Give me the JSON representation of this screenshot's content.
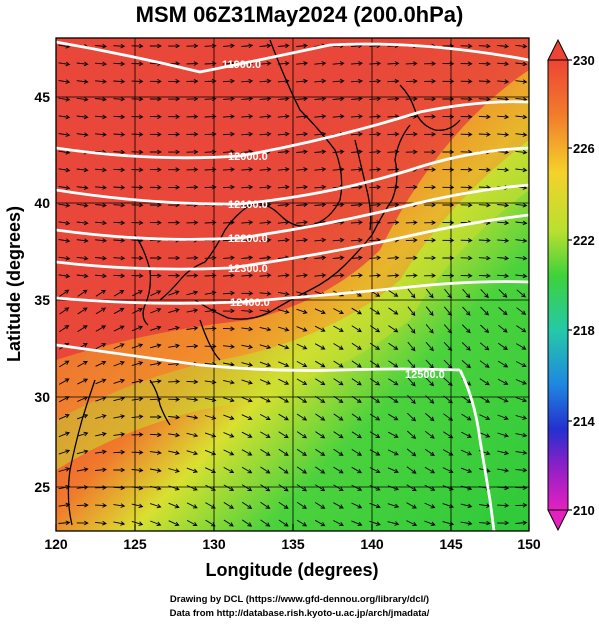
{
  "title": "MSM 06Z31May2024 (200.0hPa)",
  "x_axis": {
    "label": "Longitude (degrees)",
    "ticks": [
      "120",
      "125",
      "130",
      "135",
      "140",
      "145",
      "150"
    ]
  },
  "y_axis": {
    "label": "Latitude  (degrees)",
    "ticks": [
      "25",
      "30",
      "35",
      "40",
      "45"
    ]
  },
  "colorbar": {
    "ticks": [
      "230",
      "226",
      "222",
      "218",
      "214",
      "210"
    ]
  },
  "contours": [
    "11900.0",
    "12000.0",
    "12100.0",
    "12200.0",
    "12300.0",
    "12400.0",
    "12500.0"
  ],
  "footer": {
    "line1": "Drawing by DCL (https://www.gfd-dennou.org/library/dcl/)",
    "line2": "Data from http://database.rish.kyoto-u.ac.jp/arch/jmadata/"
  },
  "colors": {
    "warm": "#e8473a",
    "mid": "#f2d12c",
    "cool": "#3ed23a",
    "contour": "#ffffff",
    "vector": "#000000"
  }
}
